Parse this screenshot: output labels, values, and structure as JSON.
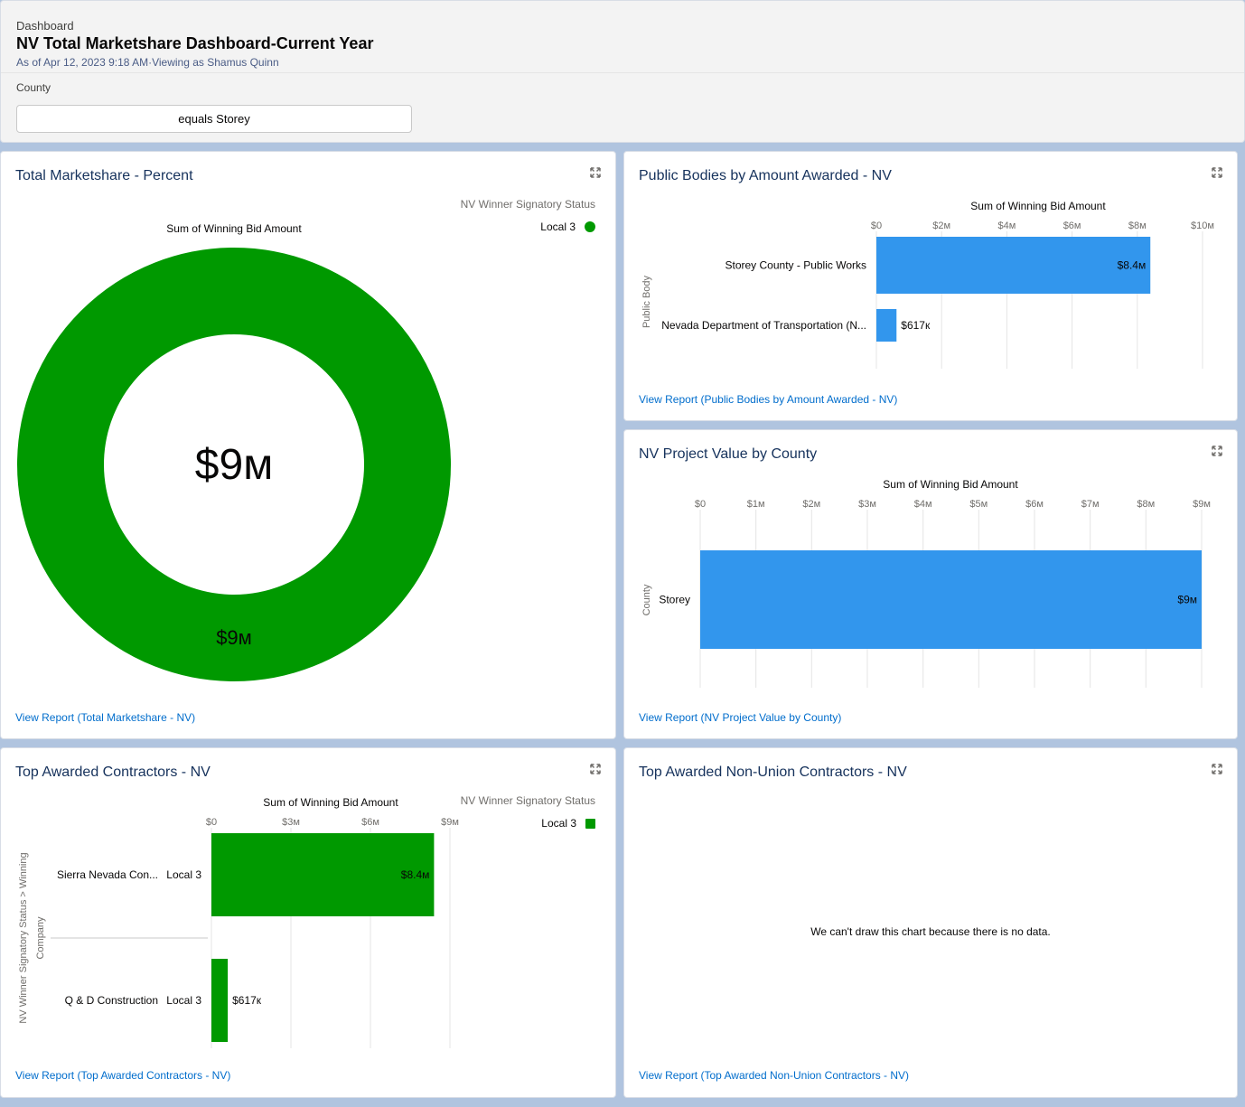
{
  "header": {
    "kicker": "Dashboard",
    "title": "NV Total Marketshare Dashboard-Current Year",
    "subtitle": "As of Apr 12, 2023 9:18 AM·Viewing as Shamus Quinn",
    "filter_label": "County",
    "filter_value": "equals Storey"
  },
  "colors": {
    "green": "#009900",
    "blue": "#3296ed",
    "link": "#006dcc",
    "title": "#16325c"
  },
  "cards": {
    "total_marketshare": {
      "title": "Total Marketshare - Percent",
      "legend_title": "NV Winner Signatory Status",
      "legend_item": "Local 3",
      "chart_title": "Sum of Winning Bid Amount",
      "center_value": "$9м",
      "slice_label": "$9м",
      "link": "View Report (Total Marketshare - NV)",
      "expand_icon": "expand-icon"
    },
    "public_bodies": {
      "title": "Public Bodies by Amount Awarded - NV",
      "chart_title": "Sum of Winning Bid Amount",
      "y_axis_label": "Public Body",
      "link": "View Report (Public Bodies by Amount Awarded - NV)"
    },
    "project_value": {
      "title": "NV Project Value by County",
      "chart_title": "Sum of Winning Bid Amount",
      "y_axis_label": "County",
      "link": "View Report (NV Project Value by County)"
    },
    "top_contractors": {
      "title": "Top Awarded Contractors - NV",
      "chart_title": "Sum of Winning Bid Amount",
      "legend_title": "NV Winner Signatory Status",
      "legend_item": "Local 3",
      "y_axis_label_1": "NV Winner Signatory Status  >  Winning",
      "y_axis_label_2": "Company",
      "link": "View Report (Top Awarded Contractors - NV)"
    },
    "non_union": {
      "title": "Top Awarded Non-Union Contractors - NV",
      "no_data": "We can't draw this chart because there is no data.",
      "link": "View Report (Top Awarded Non-Union Contractors - NV)"
    }
  },
  "chart_data": [
    {
      "type": "pie",
      "title": "Sum of Winning Bid Amount",
      "legend_title": "NV Winner Signatory Status",
      "categories": [
        "Local 3"
      ],
      "values": [
        9000000
      ],
      "value_labels": [
        "$9м"
      ]
    },
    {
      "type": "bar",
      "orientation": "horizontal",
      "title": "Sum of Winning Bid Amount",
      "ylabel": "Public Body",
      "categories": [
        "Storey County - Public Works",
        "Nevada Department of Transportation (N..."
      ],
      "values": [
        8400000,
        617000
      ],
      "value_labels": [
        "$8.4м",
        "$617к"
      ],
      "xlim": [
        0,
        10000000
      ],
      "ticks": [
        0,
        2000000,
        4000000,
        6000000,
        8000000,
        10000000
      ],
      "tick_labels": [
        "$0",
        "$2м",
        "$4м",
        "$6м",
        "$8м",
        "$10м"
      ]
    },
    {
      "type": "bar",
      "orientation": "horizontal",
      "title": "Sum of Winning Bid Amount",
      "ylabel": "County",
      "categories": [
        "Storey"
      ],
      "values": [
        9000000
      ],
      "value_labels": [
        "$9м"
      ],
      "xlim": [
        0,
        9000000
      ],
      "ticks": [
        0,
        1000000,
        2000000,
        3000000,
        4000000,
        5000000,
        6000000,
        7000000,
        8000000,
        9000000
      ],
      "tick_labels": [
        "$0",
        "$1м",
        "$2м",
        "$3м",
        "$4м",
        "$5м",
        "$6м",
        "$7м",
        "$8м",
        "$9м"
      ]
    },
    {
      "type": "bar",
      "orientation": "horizontal",
      "title": "Sum of Winning Bid Amount",
      "legend_title": "NV Winner Signatory Status",
      "categories": [
        "Sierra Nevada Con...",
        "Q & D Construction"
      ],
      "groups": [
        "Local 3",
        "Local 3"
      ],
      "values": [
        8400000,
        617000
      ],
      "value_labels": [
        "$8.4м",
        "$617к"
      ],
      "xlim": [
        0,
        9000000
      ],
      "ticks": [
        0,
        3000000,
        6000000,
        9000000
      ],
      "tick_labels": [
        "$0",
        "$3м",
        "$6м",
        "$9м"
      ]
    }
  ]
}
